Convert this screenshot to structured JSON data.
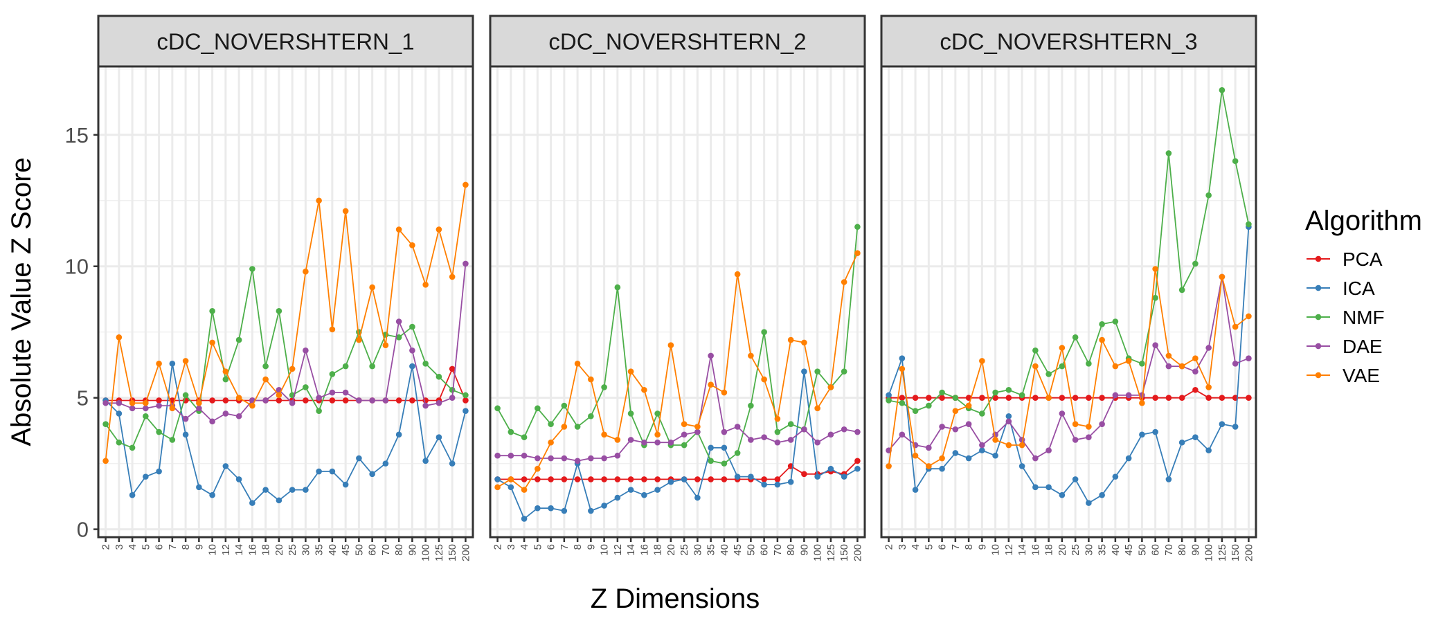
{
  "chart_data": {
    "type": "line",
    "facets": [
      "cDC_NOVERSHTERN_1",
      "cDC_NOVERSHTERN_2",
      "cDC_NOVERSHTERN_3"
    ],
    "xlabel": "Z Dimensions",
    "ylabel": "Absolute Value Z Score",
    "x_categories": [
      "2",
      "3",
      "4",
      "5",
      "6",
      "7",
      "8",
      "9",
      "10",
      "12",
      "14",
      "16",
      "18",
      "20",
      "25",
      "30",
      "35",
      "40",
      "45",
      "50",
      "60",
      "70",
      "80",
      "90",
      "100",
      "125",
      "150",
      "200"
    ],
    "yticks": [
      0,
      5,
      10,
      15
    ],
    "ylim": [
      -0.3,
      17.6
    ],
    "grid": true,
    "legend": {
      "title": "Algorithm",
      "position": "right",
      "entries": [
        "PCA",
        "ICA",
        "NMF",
        "DAE",
        "VAE"
      ]
    },
    "colors": {
      "PCA": "#e41a1c",
      "ICA": "#377eb8",
      "NMF": "#4daf4a",
      "DAE": "#984ea3",
      "VAE": "#ff7f00"
    },
    "panels": [
      {
        "facet": "cDC_NOVERSHTERN_1",
        "series": [
          {
            "name": "PCA",
            "values": [
              4.9,
              4.9,
              4.9,
              4.9,
              4.9,
              4.9,
              4.9,
              4.9,
              4.9,
              4.9,
              4.9,
              4.9,
              4.9,
              4.9,
              4.9,
              4.9,
              4.9,
              4.9,
              4.9,
              4.9,
              4.9,
              4.9,
              4.9,
              4.9,
              4.9,
              4.9,
              6.1,
              4.9
            ]
          },
          {
            "name": "ICA",
            "values": [
              4.9,
              4.4,
              1.3,
              2.0,
              2.2,
              6.3,
              3.6,
              1.6,
              1.3,
              2.4,
              1.9,
              1.0,
              1.5,
              1.1,
              1.5,
              1.5,
              2.2,
              2.2,
              1.7,
              2.7,
              2.1,
              2.5,
              3.6,
              6.2,
              2.6,
              3.5,
              2.5,
              4.5
            ]
          },
          {
            "name": "NMF",
            "values": [
              4.0,
              3.3,
              3.1,
              4.3,
              3.7,
              3.4,
              5.1,
              4.5,
              8.3,
              5.7,
              7.2,
              9.9,
              6.2,
              8.3,
              5.1,
              5.4,
              4.5,
              5.9,
              6.2,
              7.5,
              6.2,
              7.4,
              7.3,
              7.7,
              6.3,
              5.8,
              5.3,
              5.1
            ]
          },
          {
            "name": "DAE",
            "values": [
              4.8,
              4.8,
              4.6,
              4.6,
              4.7,
              4.7,
              4.2,
              4.6,
              4.1,
              4.4,
              4.3,
              4.9,
              4.9,
              5.3,
              4.8,
              6.8,
              5.0,
              5.2,
              5.2,
              4.9,
              4.9,
              4.9,
              7.9,
              6.8,
              4.7,
              4.8,
              5.0,
              10.1
            ]
          },
          {
            "name": "VAE",
            "values": [
              2.6,
              7.3,
              4.8,
              4.8,
              6.3,
              4.6,
              6.4,
              4.8,
              7.1,
              6.0,
              5.0,
              4.7,
              5.7,
              5.1,
              6.1,
              9.8,
              12.5,
              7.6,
              12.1,
              7.2,
              9.2,
              7.0,
              11.4,
              10.8,
              9.3,
              11.4,
              9.6,
              13.1
            ]
          }
        ]
      },
      {
        "facet": "cDC_NOVERSHTERN_2",
        "series": [
          {
            "name": "PCA",
            "values": [
              1.9,
              1.9,
              1.9,
              1.9,
              1.9,
              1.9,
              1.9,
              1.9,
              1.9,
              1.9,
              1.9,
              1.9,
              1.9,
              1.9,
              1.9,
              1.9,
              1.9,
              1.9,
              1.9,
              1.9,
              1.9,
              1.9,
              2.4,
              2.1,
              2.1,
              2.2,
              2.1,
              2.6
            ]
          },
          {
            "name": "ICA",
            "values": [
              1.9,
              1.6,
              0.4,
              0.8,
              0.8,
              0.7,
              2.5,
              0.7,
              0.9,
              1.2,
              1.5,
              1.3,
              1.5,
              1.8,
              1.9,
              1.2,
              3.1,
              3.1,
              2.0,
              2.0,
              1.7,
              1.7,
              1.8,
              6.0,
              2.0,
              2.3,
              2.0,
              2.3
            ]
          },
          {
            "name": "NMF",
            "values": [
              4.6,
              3.7,
              3.5,
              4.6,
              4.0,
              4.7,
              3.9,
              4.3,
              5.4,
              9.2,
              4.4,
              3.2,
              4.4,
              3.2,
              3.2,
              3.7,
              2.6,
              2.5,
              2.9,
              4.7,
              7.5,
              3.7,
              4.0,
              3.8,
              6.0,
              5.4,
              6.0,
              11.5
            ]
          },
          {
            "name": "DAE",
            "values": [
              2.8,
              2.8,
              2.8,
              2.7,
              2.7,
              2.7,
              2.6,
              2.7,
              2.7,
              2.8,
              3.4,
              3.3,
              3.3,
              3.3,
              3.6,
              3.7,
              6.6,
              3.7,
              3.9,
              3.4,
              3.5,
              3.3,
              3.4,
              3.8,
              3.3,
              3.6,
              3.8,
              3.7
            ]
          },
          {
            "name": "VAE",
            "values": [
              1.6,
              1.9,
              1.5,
              2.3,
              3.3,
              3.9,
              6.3,
              5.7,
              3.6,
              3.4,
              6.0,
              5.3,
              3.6,
              7.0,
              4.0,
              3.9,
              5.5,
              5.2,
              9.7,
              6.6,
              5.7,
              4.2,
              7.2,
              7.1,
              4.6,
              5.4,
              9.4,
              10.5
            ]
          }
        ]
      },
      {
        "facet": "cDC_NOVERSHTERN_3",
        "series": [
          {
            "name": "PCA",
            "values": [
              5.0,
              5.0,
              5.0,
              5.0,
              5.0,
              5.0,
              5.0,
              5.0,
              5.0,
              5.0,
              5.0,
              5.0,
              5.0,
              5.0,
              5.0,
              5.0,
              5.0,
              5.0,
              5.0,
              5.0,
              5.0,
              5.0,
              5.0,
              5.3,
              5.0,
              5.0,
              5.0,
              5.0
            ]
          },
          {
            "name": "ICA",
            "values": [
              5.1,
              6.5,
              1.5,
              2.3,
              2.3,
              2.9,
              2.7,
              3.0,
              2.8,
              4.3,
              2.4,
              1.6,
              1.6,
              1.3,
              1.9,
              1.0,
              1.3,
              2.0,
              2.7,
              3.6,
              3.7,
              1.9,
              3.3,
              3.5,
              3.0,
              4.0,
              3.9,
              11.5
            ]
          },
          {
            "name": "NMF",
            "values": [
              4.9,
              4.8,
              4.5,
              4.7,
              5.2,
              5.0,
              4.6,
              4.4,
              5.2,
              5.3,
              5.1,
              6.8,
              5.9,
              6.2,
              7.3,
              6.3,
              7.8,
              7.9,
              6.5,
              6.3,
              8.8,
              14.3,
              9.1,
              10.1,
              12.7,
              16.7,
              14.0,
              11.6
            ]
          },
          {
            "name": "DAE",
            "values": [
              3.0,
              3.6,
              3.2,
              3.1,
              3.9,
              3.8,
              4.0,
              3.2,
              3.6,
              4.1,
              3.4,
              2.7,
              3.0,
              4.4,
              3.4,
              3.5,
              4.0,
              5.1,
              5.1,
              5.1,
              7.0,
              6.2,
              6.2,
              6.0,
              6.9,
              9.6,
              6.3,
              6.5
            ]
          },
          {
            "name": "VAE",
            "values": [
              2.4,
              6.1,
              2.8,
              2.4,
              2.7,
              4.5,
              4.7,
              6.4,
              3.4,
              3.2,
              3.2,
              6.2,
              5.0,
              6.9,
              4.0,
              3.9,
              7.2,
              6.2,
              6.4,
              4.8,
              9.9,
              6.6,
              6.2,
              6.5,
              5.4,
              9.6,
              7.7,
              8.1
            ]
          }
        ]
      }
    ]
  }
}
